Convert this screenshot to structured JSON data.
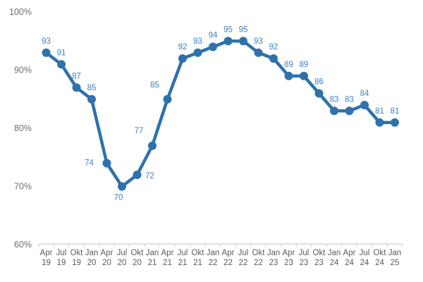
{
  "chart_data": {
    "type": "line",
    "title": "",
    "xlabel": "",
    "ylabel": "",
    "categories": [
      "Apr 19",
      "Jul 19",
      "Okt 19",
      "Jan 20",
      "Apr 20",
      "Jul 20",
      "Okt 20",
      "Jan 21",
      "Apr 21",
      "Jul 21",
      "Okt 21",
      "Jan 22",
      "Apr 22",
      "Jul 22",
      "Okt 22",
      "Jan 23",
      "Apr 23",
      "Jul 23",
      "Okt 23",
      "Jan 24",
      "Apr 24",
      "Jul 24",
      "Okt 24",
      "Jan 25"
    ],
    "values": [
      93,
      91,
      87,
      85,
      74,
      70,
      72,
      77,
      85,
      92,
      93,
      94,
      95,
      95,
      93,
      92,
      89,
      89,
      86,
      83,
      83,
      84,
      81,
      81
    ],
    "data_labels_shown": true,
    "ylim": [
      60,
      100
    ],
    "y_ticks": [
      {
        "value": 100,
        "label": "100%"
      },
      {
        "value": 90,
        "label": "90%"
      },
      {
        "value": 80,
        "label": "80%"
      },
      {
        "value": 70,
        "label": "70%"
      },
      {
        "value": 60,
        "label": "60%"
      }
    ],
    "grid": false,
    "legend_position": "none",
    "colors": {
      "line": "#2F72AB",
      "marker": "#2F72AB",
      "data_label": "#4080C0",
      "y_axis_text": "#6F6F6F",
      "x_axis_text": "#5A5A5A",
      "axis_line": "#C6C6C6",
      "background": "#FFFFFF"
    }
  }
}
